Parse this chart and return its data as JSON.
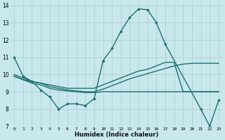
{
  "xlabel": "Humidex (Indice chaleur)",
  "bg_color": "#c8e8ed",
  "grid_color": "#aacccc",
  "line_color": "#1e7070",
  "xlim_min": -0.5,
  "xlim_max": 23.5,
  "ylim_min": 7,
  "ylim_max": 14.2,
  "yticks": [
    7,
    8,
    9,
    10,
    11,
    12,
    13,
    14
  ],
  "xticks": [
    0,
    1,
    2,
    3,
    4,
    5,
    6,
    7,
    8,
    9,
    10,
    11,
    12,
    13,
    14,
    15,
    16,
    17,
    18,
    19,
    20,
    21,
    22,
    23
  ],
  "series": [
    {
      "x": [
        0,
        1,
        2,
        3,
        4,
        5,
        6,
        7,
        8,
        9,
        10,
        11,
        12,
        13,
        14,
        15,
        16,
        17,
        21,
        22,
        23
      ],
      "y": [
        11.0,
        9.9,
        9.6,
        9.1,
        8.7,
        8.0,
        8.3,
        8.3,
        8.2,
        8.6,
        10.8,
        11.5,
        12.5,
        13.3,
        13.8,
        13.75,
        13.0,
        11.75,
        8.0,
        7.0,
        8.5
      ],
      "marker": "D",
      "lw": 1.0
    },
    {
      "x": [
        0,
        1,
        2,
        3,
        4,
        5,
        6,
        7,
        8,
        9,
        10,
        11,
        12,
        13,
        14,
        15,
        16,
        17,
        18,
        19,
        20,
        21,
        22,
        23
      ],
      "y": [
        10.0,
        9.8,
        9.6,
        9.5,
        9.4,
        9.3,
        9.2,
        9.2,
        9.2,
        9.2,
        9.4,
        9.6,
        9.8,
        10.0,
        10.2,
        10.3,
        10.5,
        10.7,
        10.7,
        9.0,
        9.0,
        9.0,
        9.0,
        9.0
      ],
      "marker": null,
      "lw": 1.0
    },
    {
      "x": [
        0,
        1,
        2,
        3,
        4,
        5,
        6,
        7,
        8,
        9,
        10,
        11,
        12,
        13,
        14,
        15,
        16,
        17,
        18,
        19,
        20,
        21,
        22,
        23
      ],
      "y": [
        9.9,
        9.7,
        9.5,
        9.4,
        9.2,
        9.1,
        9.05,
        9.0,
        8.95,
        8.95,
        9.0,
        9.0,
        9.0,
        9.0,
        9.0,
        9.0,
        9.0,
        9.0,
        9.0,
        9.0,
        9.0,
        9.0,
        9.0,
        9.0
      ],
      "marker": null,
      "lw": 1.0
    },
    {
      "x": [
        0,
        1,
        2,
        3,
        4,
        5,
        6,
        7,
        8,
        9,
        10,
        11,
        12,
        13,
        14,
        15,
        16,
        17,
        18,
        19,
        20,
        21,
        22,
        23
      ],
      "y": [
        9.9,
        9.7,
        9.6,
        9.5,
        9.3,
        9.2,
        9.1,
        9.05,
        9.0,
        9.0,
        9.15,
        9.35,
        9.55,
        9.75,
        9.9,
        10.05,
        10.2,
        10.35,
        10.5,
        10.6,
        10.65,
        10.65,
        10.65,
        10.65
      ],
      "marker": null,
      "lw": 1.0
    }
  ]
}
